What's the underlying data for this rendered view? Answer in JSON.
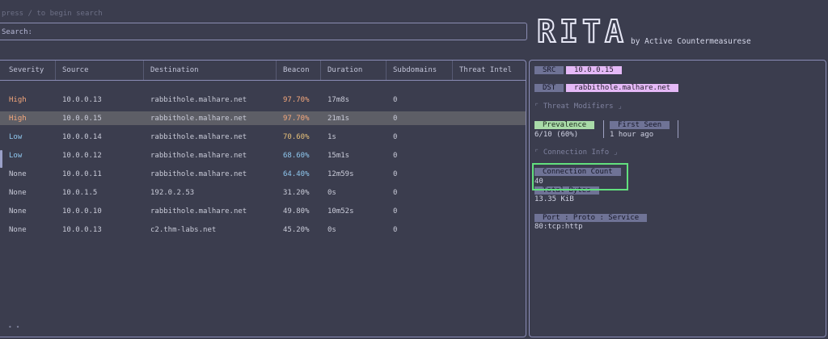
{
  "search": {
    "hint": "press / to begin search",
    "label": "Search:",
    "value": ""
  },
  "brand": {
    "logo_letters": [
      "R",
      "I",
      "T",
      "A"
    ],
    "byline": "by Active Countermeasurese"
  },
  "table": {
    "columns": [
      "Severity",
      "Source",
      "Destination",
      "Beacon",
      "Duration",
      "Subdomains",
      "Threat Intel"
    ],
    "selected_index": 1,
    "rows": [
      {
        "severity": "High",
        "sev_class": "sev-high",
        "source": "10.0.0.13",
        "destination": "rabbithole.malhare.net",
        "beacon": "97.70%",
        "beacon_class": "b-orange",
        "duration": "17m8s",
        "subdomains": "0",
        "threat_intel": ""
      },
      {
        "severity": "High",
        "sev_class": "sev-high",
        "source": "10.0.0.15",
        "destination": "rabbithole.malhare.net",
        "beacon": "97.70%",
        "beacon_class": "b-orange",
        "duration": "21m1s",
        "subdomains": "0",
        "threat_intel": ""
      },
      {
        "severity": "Low",
        "sev_class": "sev-low",
        "source": "10.0.0.14",
        "destination": "rabbithole.malhare.net",
        "beacon": "70.60%",
        "beacon_class": "b-yellow",
        "duration": "1s",
        "subdomains": "0",
        "threat_intel": ""
      },
      {
        "severity": "Low",
        "sev_class": "sev-low",
        "source": "10.0.0.12",
        "destination": "rabbithole.malhare.net",
        "beacon": "68.60%",
        "beacon_class": "b-blue",
        "duration": "15m1s",
        "subdomains": "0",
        "threat_intel": ""
      },
      {
        "severity": "None",
        "sev_class": "sev-none",
        "source": "10.0.0.11",
        "destination": "rabbithole.malhare.net",
        "beacon": "64.40%",
        "beacon_class": "b-blue",
        "duration": "12m59s",
        "subdomains": "0",
        "threat_intel": ""
      },
      {
        "severity": "None",
        "sev_class": "sev-none",
        "source": "10.0.1.5",
        "destination": "192.0.2.53",
        "beacon": "31.20%",
        "beacon_class": "b-plain",
        "duration": "0s",
        "subdomains": "0",
        "threat_intel": ""
      },
      {
        "severity": "None",
        "sev_class": "sev-none",
        "source": "10.0.0.10",
        "destination": "rabbithole.malhare.net",
        "beacon": "49.80%",
        "beacon_class": "b-plain",
        "duration": "10m52s",
        "subdomains": "0",
        "threat_intel": ""
      },
      {
        "severity": "None",
        "sev_class": "sev-none",
        "source": "10.0.0.13",
        "destination": "c2.thm-labs.net",
        "beacon": "45.20%",
        "beacon_class": "b-plain",
        "duration": "0s",
        "subdomains": "0",
        "threat_intel": ""
      }
    ],
    "footer": "• •"
  },
  "detail": {
    "src_label": "SRC",
    "src_value": "10.0.0.15",
    "dst_label": "DST",
    "dst_value": "rabbithole.malhare.net",
    "threat_modifiers_title": "⌜  Threat Modifiers ⌟",
    "prevalence_label": "Prevalence",
    "prevalence_value": "6/10 (60%)",
    "first_seen_label": "First Seen",
    "first_seen_value": "1 hour ago",
    "connection_info_title": "⌜  Connection Info ⌟",
    "connection_count_label": "Connection Count",
    "connection_count_value": "40",
    "total_bytes_label": "Total Bytes",
    "total_bytes_value": "13.35 KiB",
    "port_label": "Port : Proto : Service",
    "port_value": "80:tcp:http"
  },
  "colors": {
    "background": "#3b3d4e",
    "highlight_border": "#62e07e",
    "dst_box": "#e5b9f7",
    "prevalence_box": "#a9dba8"
  }
}
